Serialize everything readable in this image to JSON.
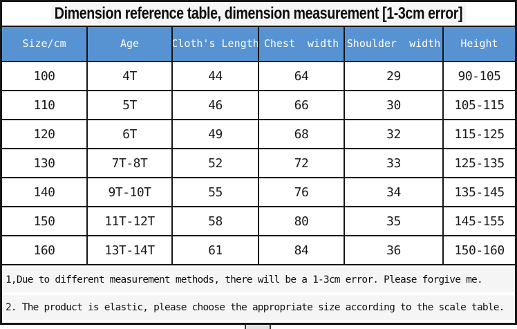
{
  "title": "Dimension reference table, dimension measurement [1-3cm error]",
  "table": {
    "headers": [
      "Size/cm",
      "Age",
      "Cloth's Length",
      "Chest  width",
      "Shoulder  width",
      "Height"
    ],
    "rows": [
      [
        "100",
        "4T",
        "44",
        "64",
        "29",
        "90-105"
      ],
      [
        "110",
        "5T",
        "46",
        "66",
        "30",
        "105-115"
      ],
      [
        "120",
        "6T",
        "49",
        "68",
        "32",
        "115-125"
      ],
      [
        "130",
        "7T-8T",
        "52",
        "72",
        "33",
        "125-135"
      ],
      [
        "140",
        "9T-10T",
        "55",
        "76",
        "34",
        "135-145"
      ],
      [
        "150",
        "11T-12T",
        "58",
        "80",
        "35",
        "145-155"
      ],
      [
        "160",
        "13T-14T",
        "61",
        "84",
        "36",
        "150-160"
      ]
    ]
  },
  "notes": [
    "1,Due to different measurement methods, there will be a 1-3cm error. Please forgive me.",
    "2. The product is elastic, please choose the appropriate size according to the scale table."
  ],
  "colors": {
    "header_bg": "#5793d3",
    "header_text": "#ffffff",
    "border": "#161616",
    "note_band": "#f5f5f5"
  },
  "chart_data": {
    "type": "table",
    "title": "Dimension reference table, dimension measurement [1-3cm error]",
    "columns": [
      "Size/cm",
      "Age",
      "Cloth's Length",
      "Chest width",
      "Shoulder width",
      "Height"
    ],
    "rows": [
      {
        "size_cm": 100,
        "age": "4T",
        "cloth_length": 44,
        "chest_width": 64,
        "shoulder_width": 29,
        "height": "90-105"
      },
      {
        "size_cm": 110,
        "age": "5T",
        "cloth_length": 46,
        "chest_width": 66,
        "shoulder_width": 30,
        "height": "105-115"
      },
      {
        "size_cm": 120,
        "age": "6T",
        "cloth_length": 49,
        "chest_width": 68,
        "shoulder_width": 32,
        "height": "115-125"
      },
      {
        "size_cm": 130,
        "age": "7T-8T",
        "cloth_length": 52,
        "chest_width": 72,
        "shoulder_width": 33,
        "height": "125-135"
      },
      {
        "size_cm": 140,
        "age": "9T-10T",
        "cloth_length": 55,
        "chest_width": 76,
        "shoulder_width": 34,
        "height": "135-145"
      },
      {
        "size_cm": 150,
        "age": "11T-12T",
        "cloth_length": 58,
        "chest_width": 80,
        "shoulder_width": 35,
        "height": "145-155"
      },
      {
        "size_cm": 160,
        "age": "13T-14T",
        "cloth_length": 61,
        "chest_width": 84,
        "shoulder_width": 36,
        "height": "150-160"
      }
    ],
    "annotations": [
      "1,Due to different measurement methods, there will be a 1-3cm error. Please forgive me.",
      "2. The product is elastic, please choose the appropriate size according to the scale table."
    ]
  }
}
